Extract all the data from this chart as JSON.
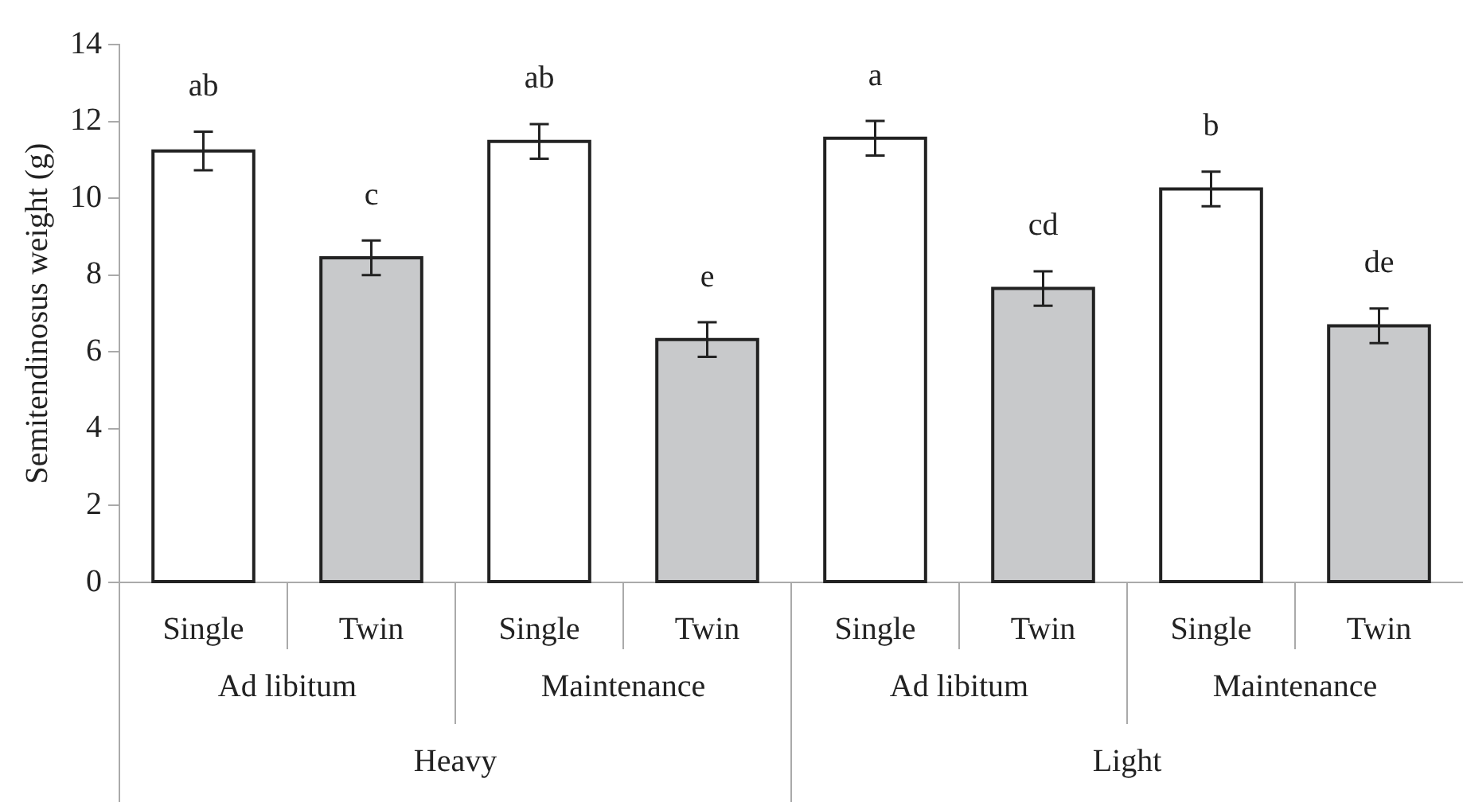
{
  "chart_data": {
    "type": "bar",
    "ylabel": "Semitendinosus weight (g)",
    "categories": [
      "Single",
      "Twin",
      "Single",
      "Twin",
      "Single",
      "Twin",
      "Single",
      "Twin"
    ],
    "values": [
      11.23,
      8.45,
      11.48,
      6.32,
      11.56,
      7.65,
      10.24,
      6.68
    ],
    "errors": [
      0.5,
      0.45,
      0.45,
      0.45,
      0.45,
      0.45,
      0.45,
      0.45
    ],
    "colors": [
      "#ffffff",
      "#c8c9cb",
      "#ffffff",
      "#c8c9cb",
      "#ffffff",
      "#c8c9cb",
      "#ffffff",
      "#c8c9cb"
    ],
    "value_labels": [
      "ab",
      "c",
      "ab",
      "e",
      "a",
      "cd",
      "b",
      "de"
    ],
    "annotations": [
      "Ad libitum",
      "Maintenance",
      "Ad libitum",
      "Maintenance",
      "Heavy",
      "Light"
    ],
    "ylim": [
      0,
      14
    ],
    "yticks": [
      0,
      2,
      4,
      6,
      8,
      10,
      12,
      14
    ],
    "legend": false
  }
}
